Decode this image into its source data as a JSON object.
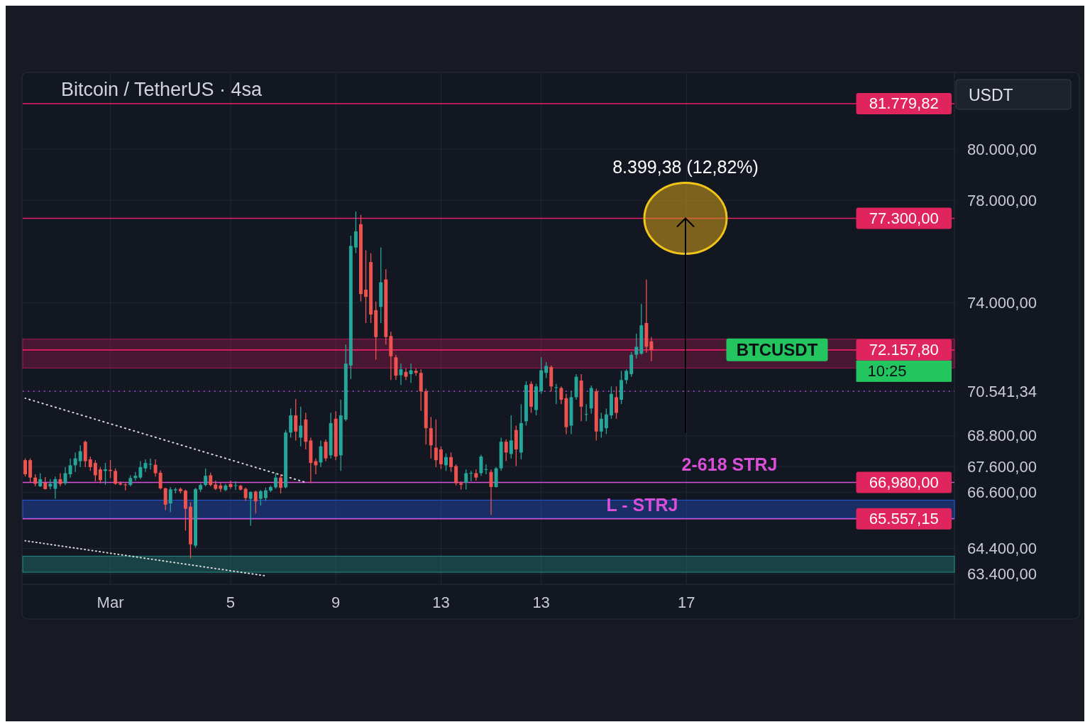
{
  "chart_data": {
    "type": "candlestick",
    "title": "Bitcoin / TetherUS · 4sa",
    "ylabel": "USDT",
    "categories": [
      null,
      null,
      null,
      null,
      null,
      null,
      null,
      null,
      null,
      null,
      null,
      null,
      null,
      null,
      null,
      null,
      null,
      "Mar",
      null,
      null,
      null,
      null,
      null,
      null,
      null,
      null,
      null,
      null,
      null,
      null,
      null,
      null,
      null,
      null,
      null,
      null,
      null,
      null,
      null,
      null,
      null,
      "5",
      null,
      null,
      null,
      null,
      null,
      null,
      null,
      null,
      null,
      null,
      null,
      null,
      null,
      null,
      null,
      null,
      null,
      null,
      null,
      null,
      "9",
      null,
      null,
      null,
      null,
      null,
      null,
      null,
      null,
      null,
      null,
      null,
      null,
      null,
      null,
      null,
      null,
      null,
      null,
      null,
      null,
      "13",
      null,
      null,
      null,
      null,
      null,
      null,
      null,
      null,
      null,
      null,
      null,
      null,
      null,
      null,
      null,
      null,
      null,
      null,
      null,
      "13",
      null,
      null,
      null,
      null,
      null,
      null,
      null,
      null,
      null,
      null,
      null,
      null,
      null,
      null,
      null,
      null,
      null,
      null,
      null,
      null,
      null,
      null,
      null,
      null,
      null,
      null,
      null,
      null,
      "17",
      null,
      null,
      null,
      null,
      null,
      null,
      null,
      null,
      null,
      null,
      null,
      null,
      null,
      null,
      null,
      null,
      null,
      null,
      null,
      null,
      null,
      null,
      null,
      null,
      null,
      null,
      null,
      null,
      null,
      null,
      null,
      null,
      null,
      null,
      null,
      null,
      null,
      null,
      null,
      null,
      null,
      null,
      null,
      null,
      null,
      null,
      null,
      null,
      null,
      null,
      null,
      null,
      null
    ],
    "ohlc": [
      [
        67850,
        67920,
        67210,
        67300
      ],
      [
        67850,
        67920,
        66980,
        67170
      ],
      [
        67170,
        67300,
        66830,
        66930
      ],
      [
        66830,
        67340,
        66800,
        67110
      ],
      [
        66970,
        67190,
        66700,
        66720
      ],
      [
        66820,
        67110,
        66710,
        66930
      ],
      [
        66730,
        67210,
        66340,
        67110
      ],
      [
        67110,
        67340,
        66830,
        66920
      ],
      [
        66950,
        67580,
        66880,
        67340
      ],
      [
        67300,
        67920,
        67170,
        67650
      ],
      [
        67650,
        68150,
        67390,
        67920
      ],
      [
        67810,
        68430,
        67580,
        68200
      ],
      [
        68570,
        68620,
        67580,
        67810
      ],
      [
        67880,
        67990,
        67430,
        67580
      ],
      [
        67740,
        67850,
        67020,
        67260
      ],
      [
        67490,
        67580,
        66950,
        67070
      ],
      [
        67430,
        67740,
        66890,
        67490
      ],
      [
        67470,
        67850,
        67150,
        67430
      ],
      [
        67430,
        67530,
        66890,
        66930
      ],
      [
        66950,
        67020,
        66860,
        66900
      ],
      [
        66900,
        66950,
        66670,
        66880
      ],
      [
        66880,
        67260,
        66830,
        67150
      ],
      [
        67150,
        67390,
        67050,
        67240
      ],
      [
        67170,
        67810,
        67110,
        67580
      ],
      [
        67530,
        67880,
        67390,
        67740
      ],
      [
        67690,
        67920,
        67490,
        67700
      ],
      [
        67670,
        67880,
        67210,
        67340
      ],
      [
        67360,
        67450,
        66700,
        66750
      ],
      [
        66750,
        66770,
        65900,
        66110
      ],
      [
        66160,
        66790,
        65820,
        66710
      ],
      [
        66670,
        66770,
        66550,
        66710
      ],
      [
        66730,
        66780,
        66550,
        66640
      ],
      [
        66660,
        66700,
        65100,
        65950
      ],
      [
        66030,
        66210,
        64010,
        64560
      ],
      [
        64510,
        66770,
        64430,
        66720
      ],
      [
        66700,
        66950,
        66610,
        66880
      ],
      [
        66880,
        67530,
        66830,
        67240
      ],
      [
        67260,
        67360,
        66830,
        66880
      ],
      [
        66900,
        67050,
        66680,
        66730
      ],
      [
        66860,
        66950,
        66610,
        66730
      ],
      [
        66680,
        66920,
        66640,
        66860
      ],
      [
        66920,
        67050,
        66730,
        66800
      ],
      [
        66850,
        67020,
        66680,
        66870
      ],
      [
        66850,
        66890,
        66660,
        66700
      ],
      [
        66730,
        66780,
        66260,
        66370
      ],
      [
        66340,
        66630,
        65290,
        66610
      ],
      [
        66620,
        66660,
        65770,
        66240
      ],
      [
        66340,
        66680,
        66080,
        66640
      ],
      [
        66370,
        66780,
        66260,
        66670
      ],
      [
        66660,
        66860,
        66610,
        66800
      ],
      [
        66790,
        67340,
        66730,
        67170
      ],
      [
        67170,
        67300,
        66550,
        66770
      ],
      [
        66790,
        69030,
        66750,
        68930
      ],
      [
        68930,
        69870,
        68730,
        69600
      ],
      [
        69600,
        70240,
        68620,
        68970
      ],
      [
        68730,
        69940,
        68390,
        69200
      ],
      [
        69440,
        69700,
        68270,
        68570
      ],
      [
        68620,
        68730,
        66950,
        67740
      ],
      [
        67810,
        67920,
        67300,
        67650
      ],
      [
        67760,
        68620,
        67580,
        68390
      ],
      [
        68570,
        68660,
        67810,
        67920
      ],
      [
        68040,
        69700,
        67920,
        69300
      ],
      [
        69470,
        69760,
        67850,
        67990
      ],
      [
        68040,
        70210,
        67430,
        69600
      ],
      [
        69440,
        72370,
        69370,
        71620
      ],
      [
        71550,
        76620,
        71020,
        76220
      ],
      [
        76160,
        77570,
        75940,
        76790
      ],
      [
        77070,
        77430,
        74050,
        74340
      ],
      [
        74510,
        76050,
        73210,
        74230
      ],
      [
        75590,
        75940,
        73210,
        73540
      ],
      [
        73710,
        74050,
        71780,
        72660
      ],
      [
        73840,
        76160,
        73210,
        74800
      ],
      [
        74910,
        75310,
        72370,
        72660
      ],
      [
        72700,
        72870,
        70980,
        71910
      ],
      [
        71870,
        71970,
        70980,
        71150
      ],
      [
        71170,
        71620,
        70790,
        71400
      ],
      [
        71300,
        71440,
        70980,
        71110
      ],
      [
        71210,
        71620,
        70870,
        71360
      ],
      [
        71340,
        71440,
        71150,
        71260
      ],
      [
        71260,
        71400,
        69780,
        70540
      ],
      [
        70540,
        70640,
        68460,
        69100
      ],
      [
        69100,
        69540,
        67920,
        68430
      ],
      [
        68340,
        69440,
        67580,
        67850
      ],
      [
        68270,
        68390,
        67510,
        67690
      ],
      [
        67650,
        68110,
        67430,
        67970
      ],
      [
        67970,
        68150,
        67390,
        67580
      ],
      [
        67620,
        67690,
        66860,
        66950
      ],
      [
        66950,
        67020,
        66700,
        66890
      ],
      [
        66970,
        67490,
        66700,
        67340
      ],
      [
        67340,
        67430,
        67020,
        67350
      ],
      [
        67340,
        67490,
        67050,
        67170
      ],
      [
        67340,
        68060,
        67240,
        67990
      ],
      [
        67490,
        67690,
        67300,
        67500
      ],
      [
        67390,
        67490,
        65710,
        66800
      ],
      [
        66800,
        67580,
        66780,
        67530
      ],
      [
        67530,
        68730,
        67430,
        68570
      ],
      [
        68570,
        68660,
        67810,
        68150
      ],
      [
        68090,
        69600,
        67920,
        68620
      ],
      [
        69030,
        69200,
        67620,
        68270
      ],
      [
        68150,
        70040,
        67880,
        69300
      ],
      [
        69370,
        70930,
        69200,
        70790
      ],
      [
        70830,
        70930,
        69700,
        69940
      ],
      [
        69810,
        70830,
        69600,
        70730
      ],
      [
        70540,
        71870,
        70440,
        71360
      ],
      [
        71260,
        71680,
        71060,
        71530
      ],
      [
        71490,
        71550,
        70540,
        70730
      ],
      [
        70690,
        70830,
        70040,
        70700
      ],
      [
        70670,
        70730,
        70040,
        70210
      ],
      [
        70270,
        70440,
        68870,
        69140
      ],
      [
        69200,
        70540,
        68870,
        70310
      ],
      [
        70310,
        71210,
        70210,
        71110
      ],
      [
        70960,
        71210,
        69370,
        69940
      ],
      [
        69640,
        70040,
        69370,
        69650
      ],
      [
        69870,
        70770,
        69670,
        70670
      ],
      [
        70540,
        70640,
        68620,
        68970
      ],
      [
        68970,
        69700,
        68730,
        69470
      ],
      [
        69100,
        69870,
        68870,
        69640
      ],
      [
        69600,
        70730,
        69470,
        70440
      ],
      [
        70310,
        70730,
        69470,
        69700
      ],
      [
        70210,
        71340,
        70040,
        70980
      ],
      [
        70980,
        71400,
        70830,
        71340
      ],
      [
        71210,
        72080,
        71110,
        71970
      ],
      [
        71970,
        72790,
        71820,
        72280
      ],
      [
        72010,
        73960,
        71970,
        73120
      ],
      [
        73210,
        74910,
        72050,
        72280
      ],
      [
        72490,
        72660,
        71720,
        72157.8
      ],
      null,
      null,
      null,
      null,
      null,
      null,
      null,
      null,
      null,
      null,
      null,
      null,
      null,
      null,
      null,
      null,
      null,
      null,
      null,
      null,
      null,
      null,
      null,
      null,
      null,
      null,
      null,
      null,
      null,
      null,
      null,
      null,
      null,
      null,
      null,
      null,
      null,
      null,
      null,
      null,
      null,
      null,
      null,
      null,
      null,
      null,
      null,
      null,
      null,
      null,
      null,
      null,
      null,
      null,
      null,
      null,
      null,
      null,
      null,
      null
    ],
    "series": [
      {
        "type": "line",
        "values": [
          70270,
          null,
          null,
          null,
          null,
          null,
          null,
          null,
          null,
          null,
          null,
          null,
          null,
          null,
          null,
          null,
          null,
          null,
          null,
          null,
          null,
          null,
          null,
          null,
          null,
          null,
          null,
          null,
          null,
          null,
          null,
          null,
          null,
          null,
          null,
          null,
          null,
          null,
          null,
          null,
          null,
          null,
          null,
          null,
          null,
          null,
          null,
          null,
          null,
          null,
          null,
          null,
          null,
          null,
          null,
          null,
          66980,
          null,
          null,
          null,
          null,
          null,
          null,
          null,
          null,
          null,
          null,
          null,
          null,
          null,
          null,
          null,
          null,
          null,
          null,
          null,
          null,
          null,
          null,
          null,
          null,
          null,
          null,
          null,
          null,
          null,
          null,
          null,
          null,
          null,
          null,
          null,
          null,
          null,
          null,
          null,
          null,
          null,
          null,
          null,
          null,
          null,
          null,
          null,
          null,
          null,
          null,
          null,
          null,
          null,
          null,
          null,
          null,
          null,
          null,
          null,
          null,
          null,
          null,
          null,
          null,
          null,
          null,
          null,
          null,
          null,
          null,
          null,
          null,
          null,
          null,
          null,
          null,
          null,
          null,
          null,
          null,
          null,
          null,
          null,
          null,
          null,
          null,
          null,
          null,
          null,
          null,
          null,
          null,
          null,
          null,
          null,
          null,
          null,
          null,
          null,
          null,
          null,
          null,
          null,
          null,
          null,
          null,
          null,
          null,
          null,
          null,
          null,
          null,
          null,
          null,
          null,
          null,
          null,
          null,
          null,
          null,
          null,
          null,
          null,
          null,
          null,
          null,
          null,
          null,
          null
        ],
        "color": "#d9d9d9",
        "line_style": "dotted"
      },
      {
        "type": "line",
        "values": [
          64700,
          null,
          null,
          null,
          null,
          null,
          null,
          null,
          null,
          null,
          null,
          null,
          null,
          null,
          null,
          null,
          null,
          null,
          null,
          null,
          null,
          null,
          null,
          null,
          null,
          null,
          null,
          null,
          null,
          null,
          null,
          null,
          null,
          null,
          null,
          null,
          null,
          null,
          null,
          null,
          null,
          null,
          null,
          null,
          null,
          null,
          null,
          null,
          63330,
          null,
          null,
          null,
          null,
          null,
          null,
          null,
          null,
          null,
          null,
          null,
          null,
          null,
          null,
          null,
          null,
          null,
          null,
          null,
          null,
          null,
          null,
          null,
          null,
          null,
          null,
          null,
          null,
          null,
          null,
          null,
          null,
          null,
          null,
          null,
          null,
          null,
          null,
          null,
          null,
          null,
          null,
          null,
          null,
          null,
          null,
          null,
          null,
          null,
          null,
          null,
          null,
          null,
          null,
          null,
          null,
          null,
          null,
          null,
          null,
          null,
          null,
          null,
          null,
          null,
          null,
          null,
          null,
          null,
          null,
          null,
          null,
          null,
          null,
          null,
          null,
          null,
          null,
          null,
          null,
          null,
          null,
          null,
          null,
          null,
          null,
          null,
          null,
          null,
          null,
          null,
          null,
          null,
          null,
          null,
          null,
          null,
          null,
          null,
          null,
          null,
          null,
          null,
          null,
          null,
          null,
          null,
          null,
          null,
          null,
          null,
          null,
          null,
          null,
          null,
          null,
          null,
          null,
          null,
          null,
          null,
          null,
          null,
          null,
          null,
          null,
          null,
          null,
          null,
          null,
          null,
          null,
          null,
          null,
          null,
          null,
          null
        ],
        "color": "#d9d9d9",
        "line_style": "dotted"
      }
    ],
    "ylim": [
      63000,
      83000
    ],
    "yticks": [
      {
        "value": 63400,
        "label": "63.400,00"
      },
      {
        "value": 64400,
        "label": "64.400,00"
      },
      {
        "value": 66600,
        "label": "66.600,00"
      },
      {
        "value": 67600,
        "label": "67.600,00"
      },
      {
        "value": 68800,
        "label": "68.800,00"
      },
      {
        "value": 70541.34,
        "label": "70.541,34"
      },
      {
        "value": 74000,
        "label": "74.000,00"
      },
      {
        "value": 78000,
        "label": "78.000,00"
      },
      {
        "value": 80000,
        "label": "80.000,00"
      }
    ],
    "ref_lines": [
      {
        "axis": "y",
        "value": 81779.82,
        "label": "81.779,82",
        "color": "#e91e63"
      },
      {
        "axis": "y",
        "value": 77300,
        "label": "77.300,00",
        "color": "#e91e63"
      },
      {
        "axis": "y",
        "value": 72157.8,
        "label": "72.157,80",
        "color": "#e91e63"
      },
      {
        "axis": "y",
        "value": 70541.34,
        "label": null,
        "color": "#b04ae0",
        "line_style": "dotted"
      },
      {
        "axis": "y",
        "value": 66980,
        "label": "66,980,00",
        "color": "#d84fd8"
      },
      {
        "axis": "y",
        "value": 65557.15,
        "label": "65.557,15",
        "color": "#d84fd8"
      }
    ],
    "bands": [
      {
        "axis": "y",
        "from": 71450,
        "to": 72580,
        "color": "#c2185b"
      },
      {
        "axis": "y",
        "from": 65580,
        "to": 66290,
        "color": "#2962ff"
      },
      {
        "axis": "y",
        "from": 63470,
        "to": 64100,
        "color": "#26a69a"
      }
    ],
    "annotations": [
      "8.399,38 (12,82%)",
      {
        "text": "2-618 STRJ",
        "y": 66980
      },
      {
        "text": "L - STRJ",
        "y": 65557.15
      },
      "BTCUSDT",
      "10:25"
    ],
    "grid": true
  }
}
